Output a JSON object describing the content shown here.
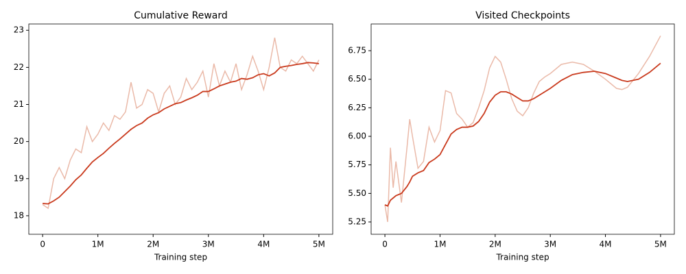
{
  "chart_data": [
    {
      "type": "line",
      "title": "Cumulative Reward",
      "x_label": "Training step",
      "x": [
        0,
        100000,
        200000,
        300000,
        400000,
        500000,
        600000,
        700000,
        800000,
        900000,
        1000000,
        1100000,
        1200000,
        1300000,
        1400000,
        1500000,
        1600000,
        1700000,
        1800000,
        1900000,
        2000000,
        2100000,
        2200000,
        2300000,
        2400000,
        2500000,
        2600000,
        2700000,
        2800000,
        2900000,
        3000000,
        3100000,
        3200000,
        3300000,
        3400000,
        3500000,
        3600000,
        3700000,
        3800000,
        3900000,
        4000000,
        4100000,
        4200000,
        4300000,
        4400000,
        4500000,
        4600000,
        4700000,
        4800000,
        4900000,
        5000000
      ],
      "series": [
        {
          "color": "#eab9a8",
          "values": [
            18.3,
            18.2,
            19.0,
            19.3,
            19.0,
            19.5,
            19.8,
            19.7,
            20.4,
            20.0,
            20.2,
            20.5,
            20.3,
            20.7,
            20.6,
            20.8,
            21.6,
            20.9,
            21.0,
            21.4,
            21.3,
            20.8,
            21.3,
            21.5,
            21.0,
            21.2,
            21.7,
            21.4,
            21.6,
            21.9,
            21.2,
            22.1,
            21.5,
            21.9,
            21.6,
            22.1,
            21.4,
            21.8,
            22.3,
            21.9,
            21.4,
            22.0,
            22.8,
            22.0,
            21.9,
            22.2,
            22.1,
            22.3,
            22.1,
            21.9,
            22.2
          ]
        },
        {
          "color": "#c9391c",
          "values": [
            18.33,
            18.32,
            18.4,
            18.5,
            18.65,
            18.8,
            18.97,
            19.1,
            19.28,
            19.45,
            19.57,
            19.68,
            19.82,
            19.95,
            20.07,
            20.2,
            20.33,
            20.43,
            20.5,
            20.63,
            20.72,
            20.78,
            20.88,
            20.95,
            21.02,
            21.05,
            21.12,
            21.18,
            21.25,
            21.35,
            21.35,
            21.42,
            21.5,
            21.55,
            21.6,
            21.63,
            21.7,
            21.68,
            21.72,
            21.8,
            21.83,
            21.77,
            21.85,
            22.0,
            22.03,
            22.05,
            22.08,
            22.1,
            22.13,
            22.12,
            22.1
          ]
        }
      ],
      "xlim": [
        -250000,
        5250000
      ],
      "xticks": [
        0,
        {
          "value": 1000000,
          "label": "1M"
        },
        {
          "value": 2000000,
          "label": "2M"
        },
        {
          "value": 3000000,
          "label": "3M"
        },
        {
          "value": 4000000,
          "label": "4M"
        },
        {
          "value": 5000000,
          "label": "5M"
        }
      ],
      "ylim": [
        17.5,
        23.17
      ],
      "yticks": [
        18,
        19,
        20,
        21,
        22,
        23
      ]
    },
    {
      "type": "line",
      "title": "Visited Checkpoints",
      "x_label": "Training step",
      "x": [
        0,
        50000,
        100000,
        150000,
        200000,
        300000,
        400000,
        450000,
        500000,
        600000,
        700000,
        800000,
        900000,
        1000000,
        1100000,
        1200000,
        1300000,
        1400000,
        1500000,
        1600000,
        1700000,
        1800000,
        1900000,
        2000000,
        2100000,
        2200000,
        2300000,
        2400000,
        2500000,
        2600000,
        2700000,
        2800000,
        2900000,
        3000000,
        3200000,
        3400000,
        3600000,
        3800000,
        4000000,
        4200000,
        4300000,
        4400000,
        4600000,
        4800000,
        5000000
      ],
      "series": [
        {
          "color": "#eab9a8",
          "values": [
            5.4,
            5.25,
            5.9,
            5.55,
            5.78,
            5.42,
            5.9,
            6.15,
            6.0,
            5.72,
            5.78,
            6.08,
            5.95,
            6.05,
            6.4,
            6.38,
            6.2,
            6.15,
            6.08,
            6.12,
            6.25,
            6.4,
            6.6,
            6.7,
            6.65,
            6.5,
            6.33,
            6.22,
            6.18,
            6.25,
            6.38,
            6.48,
            6.52,
            6.55,
            6.63,
            6.65,
            6.63,
            6.57,
            6.5,
            6.42,
            6.41,
            6.43,
            6.55,
            6.7,
            6.88
          ]
        },
        {
          "color": "#c9391c",
          "values": [
            5.4,
            5.39,
            5.44,
            5.46,
            5.48,
            5.5,
            5.56,
            5.6,
            5.65,
            5.68,
            5.7,
            5.77,
            5.8,
            5.84,
            5.93,
            6.02,
            6.06,
            6.08,
            6.08,
            6.09,
            6.13,
            6.2,
            6.3,
            6.36,
            6.39,
            6.39,
            6.37,
            6.34,
            6.31,
            6.31,
            6.33,
            6.36,
            6.39,
            6.42,
            6.49,
            6.54,
            6.56,
            6.57,
            6.55,
            6.51,
            6.49,
            6.48,
            6.5,
            6.56,
            6.64
          ]
        }
      ],
      "xlim": [
        -250000,
        5250000
      ],
      "xticks": [
        0,
        {
          "value": 1000000,
          "label": "1M"
        },
        {
          "value": 2000000,
          "label": "2M"
        },
        {
          "value": 3000000,
          "label": "3M"
        },
        {
          "value": 4000000,
          "label": "4M"
        },
        {
          "value": 5000000,
          "label": "5M"
        }
      ],
      "ylim": [
        5.142,
        6.984
      ],
      "yticks": [
        5.25,
        {
          "value": 5.5,
          "label": "5.50"
        },
        5.75,
        {
          "value": 6,
          "label": "6.00"
        },
        6.25,
        {
          "value": 6.5,
          "label": "6.50"
        },
        6.75
      ]
    }
  ]
}
